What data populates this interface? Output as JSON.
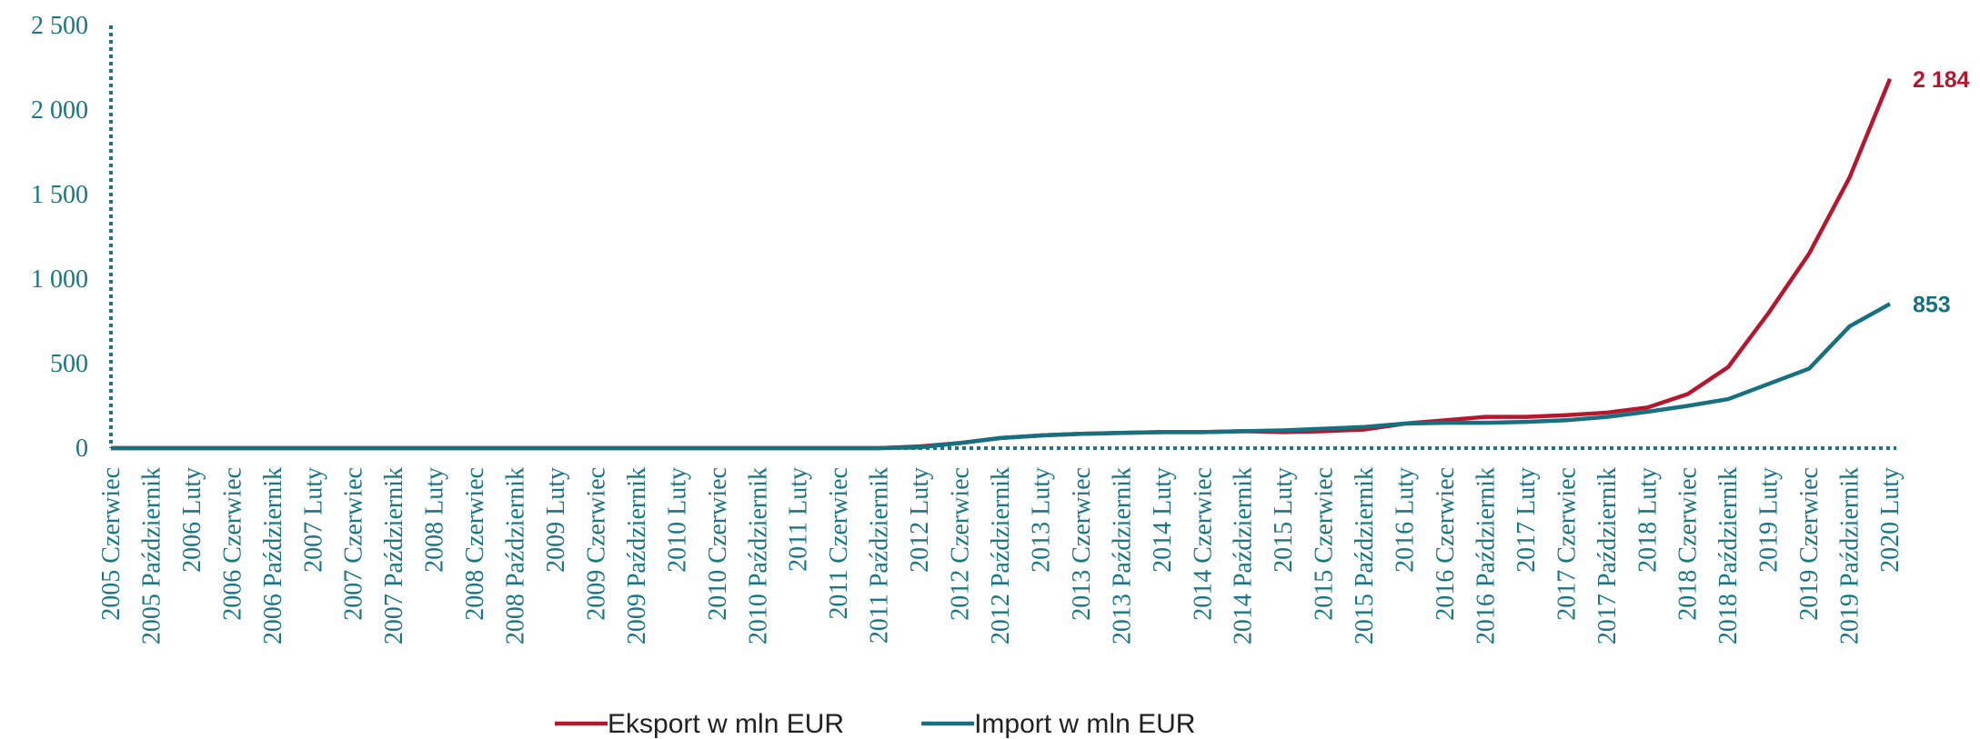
{
  "chart_data": {
    "type": "line",
    "categories": [
      "2005 Czerwiec",
      "2005 Październik",
      "2006 Luty",
      "2006 Czerwiec",
      "2006 Październik",
      "2007 Luty",
      "2007 Czerwiec",
      "2007 Październik",
      "2008 Luty",
      "2008 Czerwiec",
      "2008 Październik",
      "2009 Luty",
      "2009 Czerwiec",
      "2009 Październik",
      "2010 Luty",
      "2010 Czerwiec",
      "2010 Październik",
      "2011 Luty",
      "2011 Czerwiec",
      "2011 Październik",
      "2012 Luty",
      "2012 Czerwiec",
      "2012 Październik",
      "2013 Luty",
      "2013 Czerwiec",
      "2013 Październik",
      "2014 Luty",
      "2014 Czerwiec",
      "2014 Październik",
      "2015 Luty",
      "2015 Czerwiec",
      "2015 Październik",
      "2016 Luty",
      "2016 Czerwiec",
      "2016 Październik",
      "2017 Luty",
      "2017 Czerwiec",
      "2017 Październik",
      "2018 Luty",
      "2018 Czerwiec",
      "2018 Październik",
      "2019 Luty",
      "2019 Czerwiec",
      "2019 Październik",
      "2020 Luty"
    ],
    "series": [
      {
        "name": "Eksport w mln EUR",
        "color": "#b5172f",
        "values": [
          0,
          0,
          0,
          0,
          0,
          0,
          0,
          0,
          0,
          0,
          0,
          0,
          0,
          0,
          0,
          0,
          0,
          0,
          0,
          0,
          10,
          30,
          60,
          75,
          85,
          90,
          95,
          95,
          100,
          95,
          100,
          110,
          145,
          165,
          185,
          185,
          195,
          210,
          240,
          320,
          480,
          800,
          1150,
          1600,
          2184
        ],
        "value_labels": [
          null,
          null,
          null,
          null,
          null,
          null,
          null,
          null,
          null,
          null,
          null,
          null,
          null,
          null,
          null,
          null,
          null,
          null,
          null,
          null,
          null,
          null,
          null,
          null,
          null,
          null,
          null,
          null,
          null,
          null,
          null,
          null,
          null,
          null,
          null,
          null,
          null,
          null,
          null,
          null,
          null,
          null,
          null,
          null,
          "2 184"
        ]
      },
      {
        "name": "Import w mln EUR",
        "color": "#17707f",
        "values": [
          0,
          0,
          0,
          0,
          0,
          0,
          0,
          0,
          0,
          0,
          0,
          0,
          0,
          0,
          0,
          0,
          0,
          0,
          0,
          0,
          5,
          30,
          60,
          75,
          85,
          90,
          95,
          95,
          100,
          105,
          115,
          125,
          145,
          150,
          150,
          155,
          165,
          185,
          215,
          250,
          290,
          380,
          470,
          720,
          853
        ],
        "value_labels": [
          null,
          null,
          null,
          null,
          null,
          null,
          null,
          null,
          null,
          null,
          null,
          null,
          null,
          null,
          null,
          null,
          null,
          null,
          null,
          null,
          null,
          null,
          null,
          null,
          null,
          null,
          null,
          null,
          null,
          null,
          null,
          null,
          null,
          null,
          null,
          null,
          null,
          null,
          null,
          null,
          null,
          null,
          null,
          null,
          "853"
        ]
      }
    ],
    "ylim": [
      0,
      2500
    ],
    "yticks": [
      0,
      500,
      {
        "value": 1000,
        "label": "1 000"
      },
      {
        "value": 1500,
        "label": "1 500"
      },
      {
        "value": 2000,
        "label": "2 000"
      },
      {
        "value": 2500,
        "label": "2 500"
      }
    ],
    "axis_color": "#1a7585"
  }
}
